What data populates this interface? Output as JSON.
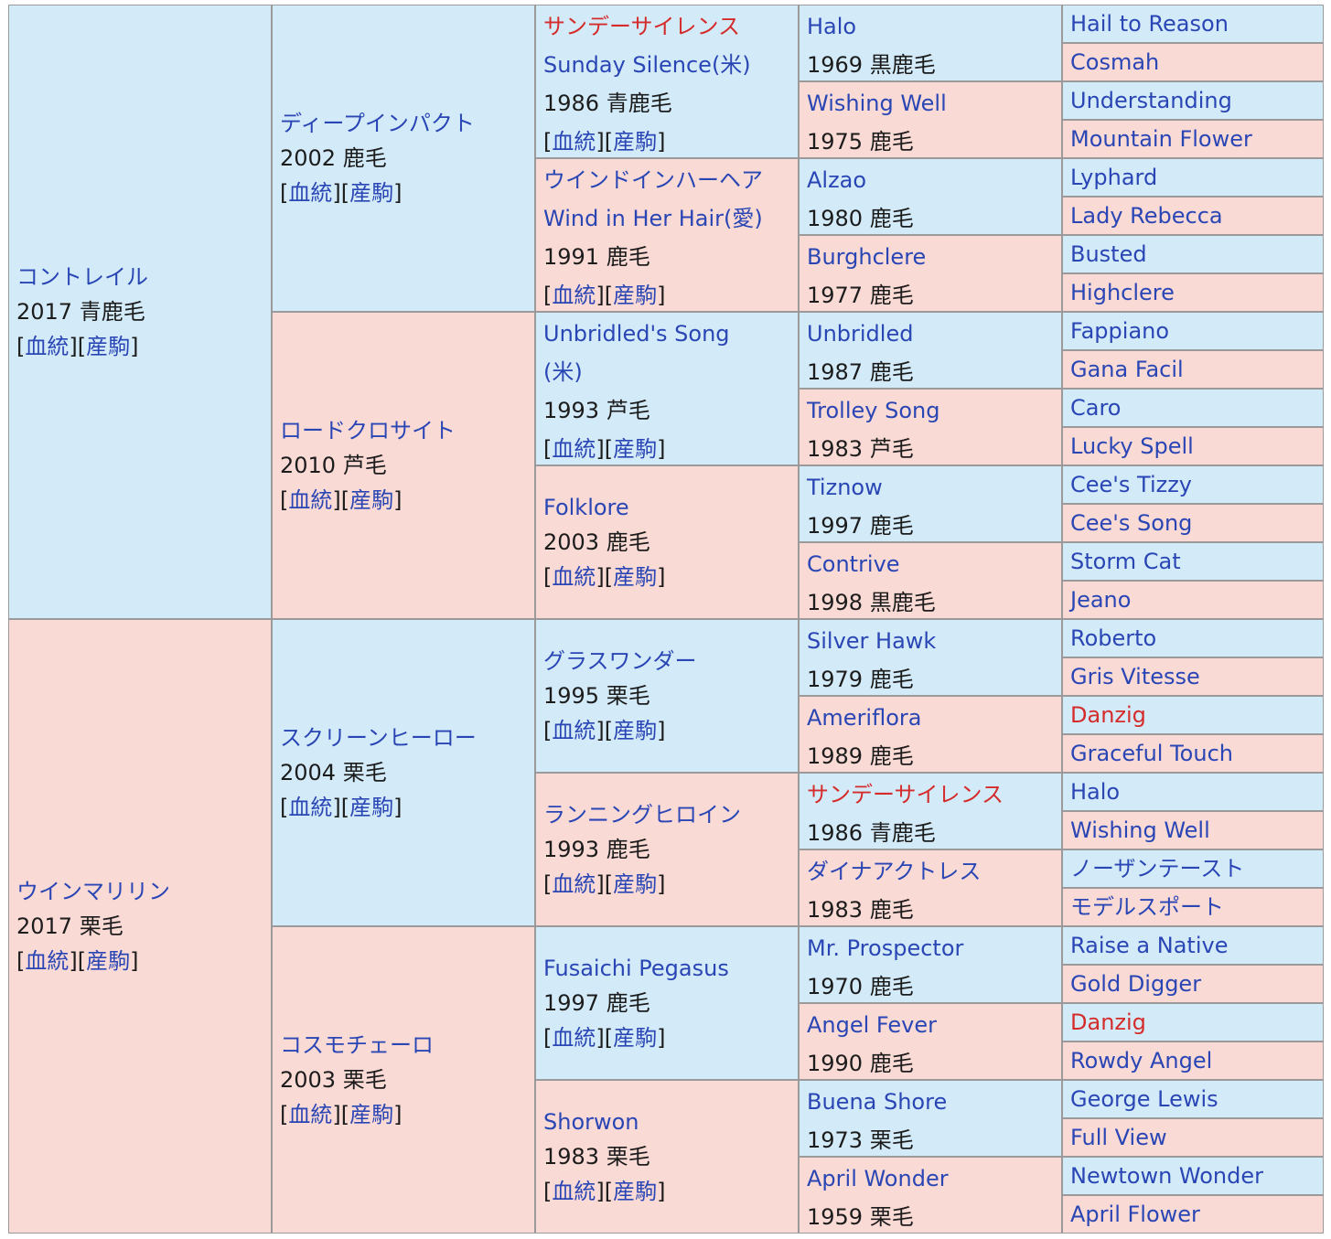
{
  "pedigree": {
    "sire": {
      "name": "コントレイル",
      "year_color": "2017 青鹿毛",
      "bloodline_link": "血統",
      "offspring_link": "産駒",
      "sire": {
        "name": "ディープインパクト",
        "year_color": "2002 鹿毛",
        "bloodline_link": "血統",
        "offspring_link": "産駒",
        "sire": {
          "name_ja": "サンデーサイレンス",
          "name": "Sunday Silence(米)",
          "year_color": "1986 青鹿毛",
          "bloodline_link": "血統",
          "offspring_link": "産駒",
          "sire": {
            "name": "Halo",
            "year_color": "1969 黒鹿毛",
            "sire": "Hail to Reason",
            "dam": "Cosmah"
          },
          "dam": {
            "name": "Wishing Well",
            "year_color": "1975 鹿毛",
            "sire": "Understanding",
            "dam": "Mountain Flower"
          }
        },
        "dam": {
          "name_ja": "ウインドインハーヘア",
          "name": "Wind in Her Hair(愛)",
          "year_color": "1991 鹿毛",
          "bloodline_link": "血統",
          "offspring_link": "産駒",
          "sire": {
            "name": "Alzao",
            "year_color": "1980 鹿毛",
            "sire": "Lyphard",
            "dam": "Lady Rebecca"
          },
          "dam": {
            "name": "Burghclere",
            "year_color": "1977 鹿毛",
            "sire": "Busted",
            "dam": "Highclere"
          }
        }
      },
      "dam": {
        "name": "ロードクロサイト",
        "year_color": "2010 芦毛",
        "bloodline_link": "血統",
        "offspring_link": "産駒",
        "sire": {
          "name": "Unbridled's Song",
          "name_suffix": "(米)",
          "year_color": "1993 芦毛",
          "bloodline_link": "血統",
          "offspring_link": "産駒",
          "sire": {
            "name": "Unbridled",
            "year_color": "1987 鹿毛",
            "sire": "Fappiano",
            "dam": "Gana Facil"
          },
          "dam": {
            "name": "Trolley Song",
            "year_color": "1983 芦毛",
            "sire": "Caro",
            "dam": "Lucky Spell"
          }
        },
        "dam": {
          "name": "Folklore",
          "year_color": "2003 鹿毛",
          "bloodline_link": "血統",
          "offspring_link": "産駒",
          "sire": {
            "name": "Tiznow",
            "year_color": "1997 鹿毛",
            "sire": "Cee's Tizzy",
            "dam": "Cee's Song"
          },
          "dam": {
            "name": "Contrive",
            "year_color": "1998 黒鹿毛",
            "sire": "Storm Cat",
            "dam": "Jeano"
          }
        }
      }
    },
    "dam": {
      "name": "ウインマリリン",
      "year_color": "2017 栗毛",
      "bloodline_link": "血統",
      "offspring_link": "産駒",
      "sire": {
        "name": "スクリーンヒーロー",
        "year_color": "2004 栗毛",
        "bloodline_link": "血統",
        "offspring_link": "産駒",
        "sire": {
          "name": "グラスワンダー",
          "year_color": "1995 栗毛",
          "bloodline_link": "血統",
          "offspring_link": "産駒",
          "sire": {
            "name": "Silver Hawk",
            "year_color": "1979 鹿毛",
            "sire": "Roberto",
            "dam": "Gris Vitesse"
          },
          "dam": {
            "name": "Ameriflora",
            "year_color": "1989 鹿毛",
            "sire": "Danzig",
            "dam": "Graceful Touch"
          }
        },
        "dam": {
          "name": "ランニングヒロイン",
          "year_color": "1993 鹿毛",
          "bloodline_link": "血統",
          "offspring_link": "産駒",
          "sire": {
            "name": "サンデーサイレンス",
            "year_color": "1986 青鹿毛",
            "sire": "Halo",
            "dam": "Wishing Well"
          },
          "dam": {
            "name": "ダイナアクトレス",
            "year_color": "1983 鹿毛",
            "sire": "ノーザンテースト",
            "dam": "モデルスポート"
          }
        }
      },
      "dam": {
        "name": "コスモチェーロ",
        "year_color": "2003 栗毛",
        "bloodline_link": "血統",
        "offspring_link": "産駒",
        "sire": {
          "name": "Fusaichi Pegasus",
          "year_color": "1997 鹿毛",
          "bloodline_link": "血統",
          "offspring_link": "産駒",
          "sire": {
            "name": "Mr. Prospector",
            "year_color": "1970 鹿毛",
            "sire": "Raise a Native",
            "dam": "Gold Digger"
          },
          "dam": {
            "name": "Angel Fever",
            "year_color": "1990 鹿毛",
            "sire": "Danzig",
            "dam": "Rowdy Angel"
          }
        },
        "dam": {
          "name": "Shorwon",
          "year_color": "1983 栗毛",
          "bloodline_link": "血統",
          "offspring_link": "産駒",
          "sire": {
            "name": "Buena Shore",
            "year_color": "1973 栗毛",
            "sire": "George Lewis",
            "dam": "Full View"
          },
          "dam": {
            "name": "April Wonder",
            "year_color": "1959 栗毛",
            "sire": "Newtown Wonder",
            "dam": "April Flower"
          }
        }
      }
    }
  },
  "colors": {
    "male_bg": "#d3ebf9",
    "female_bg": "#f9dad5",
    "link": "#2a46b5",
    "inbreeding_link": "#d42b2b",
    "border": "#9a9a9a"
  },
  "highlighted_names": [
    "サンデーサイレンス",
    "Danzig"
  ]
}
